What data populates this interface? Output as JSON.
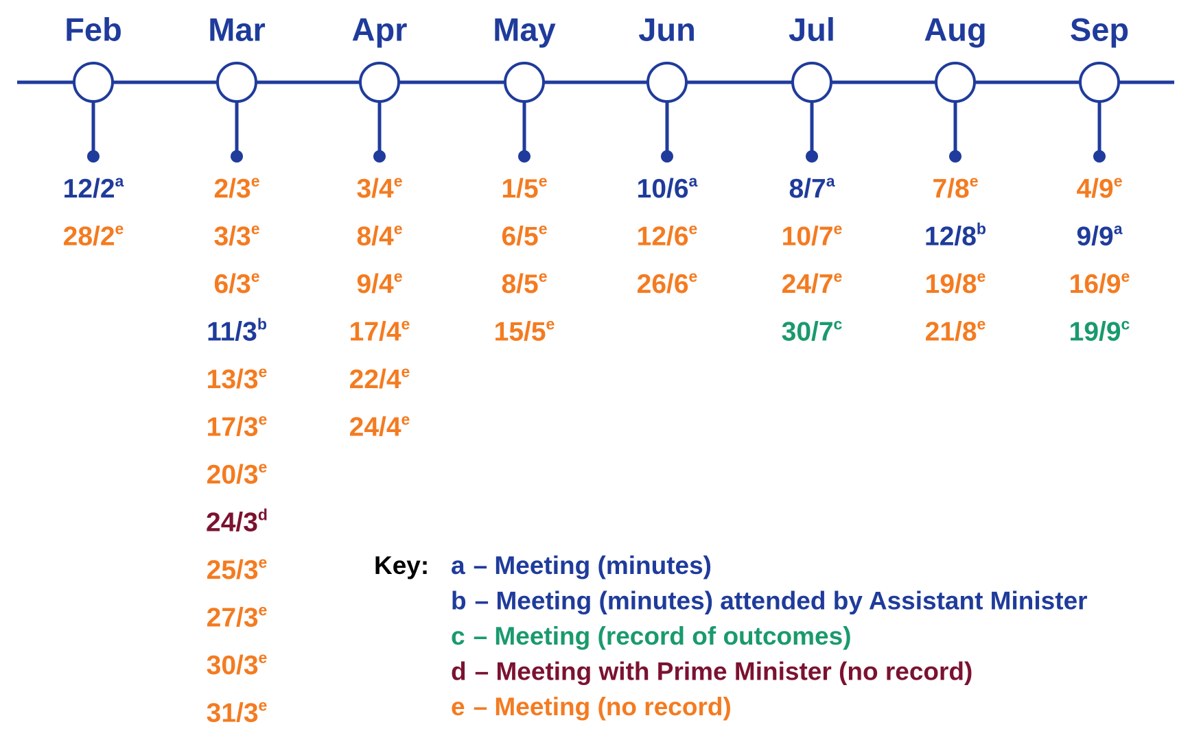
{
  "months": [
    {
      "label": "Feb",
      "entries": [
        {
          "date": "12/2",
          "note": "a"
        },
        {
          "date": "28/2",
          "note": "e"
        }
      ]
    },
    {
      "label": "Mar",
      "entries": [
        {
          "date": "2/3",
          "note": "e"
        },
        {
          "date": "3/3",
          "note": "e"
        },
        {
          "date": "6/3",
          "note": "e"
        },
        {
          "date": "11/3",
          "note": "b"
        },
        {
          "date": "13/3",
          "note": "e"
        },
        {
          "date": "17/3",
          "note": "e"
        },
        {
          "date": "20/3",
          "note": "e"
        },
        {
          "date": "24/3",
          "note": "d"
        },
        {
          "date": "25/3",
          "note": "e"
        },
        {
          "date": "27/3",
          "note": "e"
        },
        {
          "date": "30/3",
          "note": "e"
        },
        {
          "date": "31/3",
          "note": "e"
        }
      ]
    },
    {
      "label": "Apr",
      "entries": [
        {
          "date": "3/4",
          "note": "e"
        },
        {
          "date": "8/4",
          "note": "e"
        },
        {
          "date": "9/4",
          "note": "e"
        },
        {
          "date": "17/4",
          "note": "e"
        },
        {
          "date": "22/4",
          "note": "e"
        },
        {
          "date": "24/4",
          "note": "e"
        }
      ]
    },
    {
      "label": "May",
      "entries": [
        {
          "date": "1/5",
          "note": "e"
        },
        {
          "date": "6/5",
          "note": "e"
        },
        {
          "date": "8/5",
          "note": "e"
        },
        {
          "date": "15/5",
          "note": "e"
        }
      ]
    },
    {
      "label": "Jun",
      "entries": [
        {
          "date": "10/6",
          "note": "a"
        },
        {
          "date": "12/6",
          "note": "e"
        },
        {
          "date": "26/6",
          "note": "e"
        }
      ]
    },
    {
      "label": "Jul",
      "entries": [
        {
          "date": "8/7",
          "note": "a"
        },
        {
          "date": "10/7",
          "note": "e"
        },
        {
          "date": "24/7",
          "note": "e"
        },
        {
          "date": "30/7",
          "note": "c"
        }
      ]
    },
    {
      "label": "Aug",
      "entries": [
        {
          "date": "7/8",
          "note": "e"
        },
        {
          "date": "12/8",
          "note": "b"
        },
        {
          "date": "19/8",
          "note": "e"
        },
        {
          "date": "21/8",
          "note": "e"
        }
      ]
    },
    {
      "label": "Sep",
      "entries": [
        {
          "date": "4/9",
          "note": "e"
        },
        {
          "date": "9/9",
          "note": "a"
        },
        {
          "date": "16/9",
          "note": "e"
        },
        {
          "date": "19/9",
          "note": "c"
        }
      ]
    }
  ],
  "key": {
    "label": "Key:",
    "items": [
      {
        "letter": "a",
        "text": "– Meeting (minutes)",
        "color": "#1f3b9b"
      },
      {
        "letter": "b",
        "text": "– Meeting (minutes) attended by Assistant Minister",
        "color": "#1f3b9b"
      },
      {
        "letter": "c",
        "text": "– Meeting (record of outcomes)",
        "color": "#1a9a6c"
      },
      {
        "letter": "d",
        "text": "– Meeting with Prime Minister (no record)",
        "color": "#7b1230"
      },
      {
        "letter": "e",
        "text": "– Meeting (no record)",
        "color": "#f47b20"
      }
    ]
  }
}
